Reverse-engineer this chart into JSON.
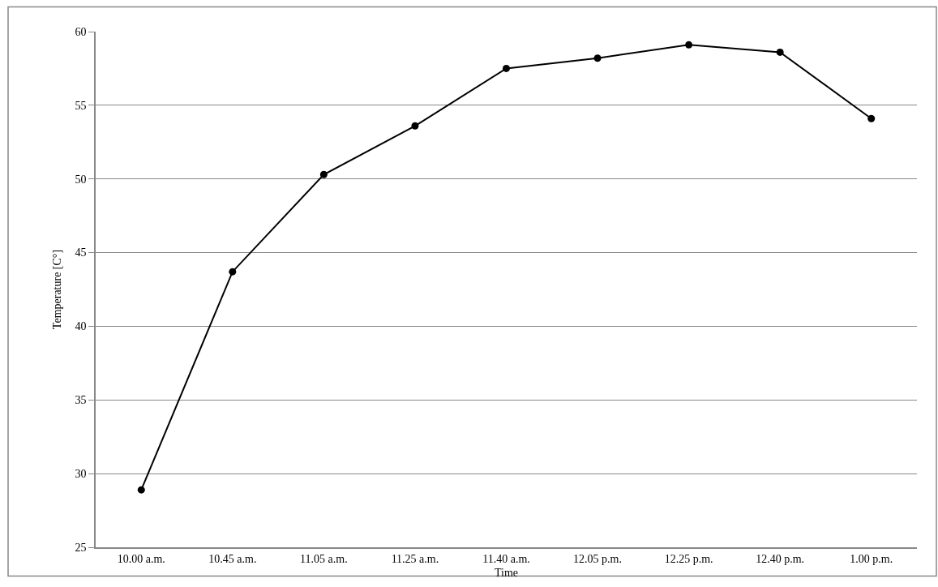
{
  "chart_data": {
    "type": "line",
    "xlabel": "Time",
    "ylabel": "Temperature [C°]",
    "categories": [
      "10.00 a.m.",
      "10.45 a.m.",
      "11.05 a.m.",
      "11.25 a.m.",
      "11.40 a.m.",
      "12.05 p.m.",
      "12.25 p.m.",
      "12.40 p.m.",
      "1.00 p.m."
    ],
    "series": [
      {
        "color": "#000000",
        "values": [
          28.9,
          43.7,
          50.3,
          53.6,
          57.5,
          58.2,
          59.1,
          58.6,
          54.1
        ]
      }
    ],
    "ylim": [
      25,
      60
    ],
    "yticks": [
      25,
      30,
      35,
      40,
      45,
      50,
      55,
      60
    ],
    "grid": "y",
    "marker": "circle",
    "line_style": "solid"
  }
}
